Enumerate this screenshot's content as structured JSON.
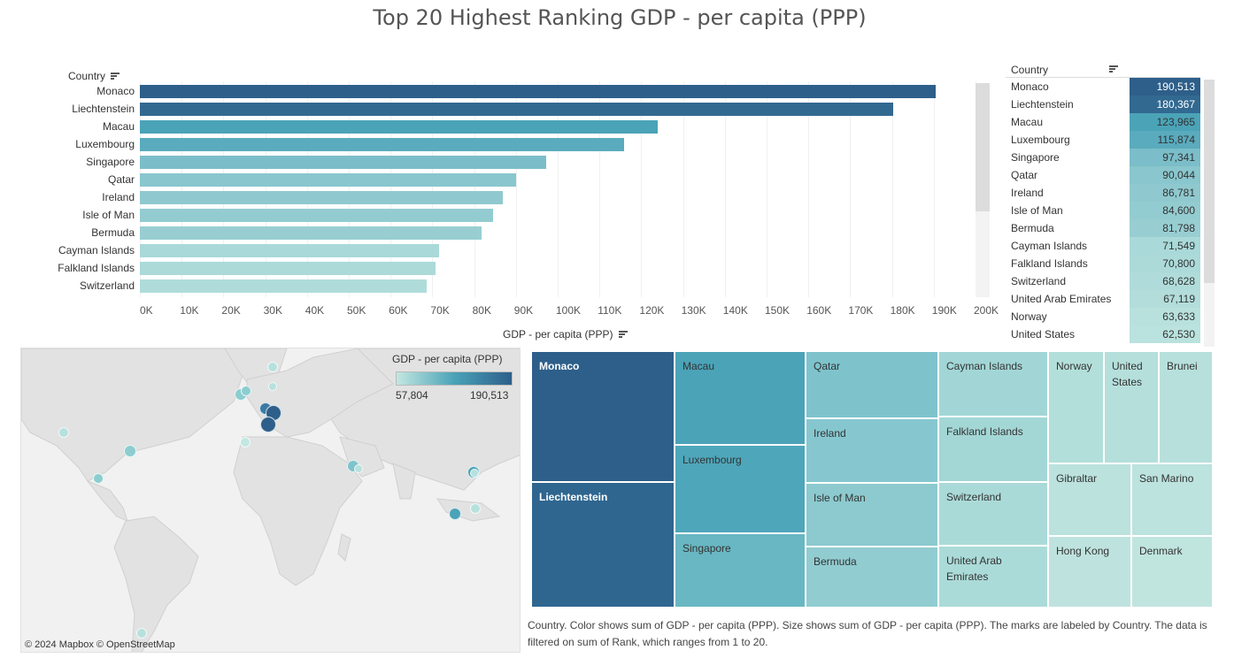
{
  "title": "Top 20 Highest Ranking GDP - per capita (PPP)",
  "colors": {
    "dark": "#2d5f8a",
    "mid": "#4ba3b8",
    "light": "#b7e1dd",
    "lightest": "#c3e7e1"
  },
  "bar_chart": {
    "column_header": "Country",
    "axis_title": "GDP - per capita (PPP)",
    "tick_labels": [
      "0K",
      "10K",
      "20K",
      "30K",
      "40K",
      "50K",
      "60K",
      "70K",
      "80K",
      "90K",
      "100K",
      "110K",
      "120K",
      "130K",
      "140K",
      "150K",
      "160K",
      "170K",
      "180K",
      "190K",
      "200K"
    ]
  },
  "table": {
    "column_header": "Country",
    "rows": [
      {
        "country": "Monaco",
        "value": "190,513"
      },
      {
        "country": "Liechtenstein",
        "value": "180,367"
      },
      {
        "country": "Macau",
        "value": "123,965"
      },
      {
        "country": "Luxembourg",
        "value": "115,874"
      },
      {
        "country": "Singapore",
        "value": "97,341"
      },
      {
        "country": "Qatar",
        "value": "90,044"
      },
      {
        "country": "Ireland",
        "value": "86,781"
      },
      {
        "country": "Isle of Man",
        "value": "84,600"
      },
      {
        "country": "Bermuda",
        "value": "81,798"
      },
      {
        "country": "Cayman Islands",
        "value": "71,549"
      },
      {
        "country": "Falkland Islands",
        "value": "70,800"
      },
      {
        "country": "Switzerland",
        "value": "68,628"
      },
      {
        "country": "United Arab Emirates",
        "value": "67,119"
      },
      {
        "country": "Norway",
        "value": "63,633"
      },
      {
        "country": "United States",
        "value": "62,530"
      }
    ]
  },
  "map": {
    "legend_title": "GDP - per capita (PPP)",
    "legend_min": "57,804",
    "legend_max": "190,513",
    "attribution": "© 2024 Mapbox  © OpenStreetMap"
  },
  "treemap": {
    "cells": [
      {
        "label": "Monaco",
        "value": 190513
      },
      {
        "label": "Liechtenstein",
        "value": 180367
      },
      {
        "label": "Macau",
        "value": 123965
      },
      {
        "label": "Luxembourg",
        "value": 115874
      },
      {
        "label": "Singapore",
        "value": 97341
      },
      {
        "label": "Qatar",
        "value": 90044
      },
      {
        "label": "Ireland",
        "value": 86781
      },
      {
        "label": "Isle of Man",
        "value": 84600
      },
      {
        "label": "Bermuda",
        "value": 81798
      },
      {
        "label": "Cayman Islands",
        "value": 71549
      },
      {
        "label": "Falkland Islands",
        "value": 70800
      },
      {
        "label": "Switzerland",
        "value": 68628
      },
      {
        "label": "United Arab Emirates",
        "value": 67119
      },
      {
        "label": "Norway",
        "value": 63633
      },
      {
        "label": "United States",
        "value": 62530
      },
      {
        "label": "Brunei"
      },
      {
        "label": "Gibraltar"
      },
      {
        "label": "San Marino"
      },
      {
        "label": "Hong Kong"
      },
      {
        "label": "Denmark"
      }
    ]
  },
  "caption": "Country.  Color shows sum of GDP - per capita (PPP).  Size shows sum of GDP - per capita (PPP).  The marks are labeled by Country. The data is filtered on sum of Rank, which ranges from 1 to 20.",
  "chart_data": {
    "type": "bar",
    "orientation": "horizontal",
    "title": "Top 20 Highest Ranking GDP - per capita (PPP)",
    "xlabel": "GDP - per capita (PPP)",
    "ylabel": "Country",
    "xlim": [
      0,
      200000
    ],
    "categories": [
      "Monaco",
      "Liechtenstein",
      "Macau",
      "Luxembourg",
      "Singapore",
      "Qatar",
      "Ireland",
      "Isle of Man",
      "Bermuda",
      "Cayman Islands",
      "Falkland Islands",
      "Switzerland"
    ],
    "values": [
      190513,
      180367,
      123965,
      115874,
      97341,
      90044,
      86781,
      84600,
      81798,
      71549,
      70800,
      68628
    ],
    "color_range": [
      57804,
      190513
    ]
  }
}
